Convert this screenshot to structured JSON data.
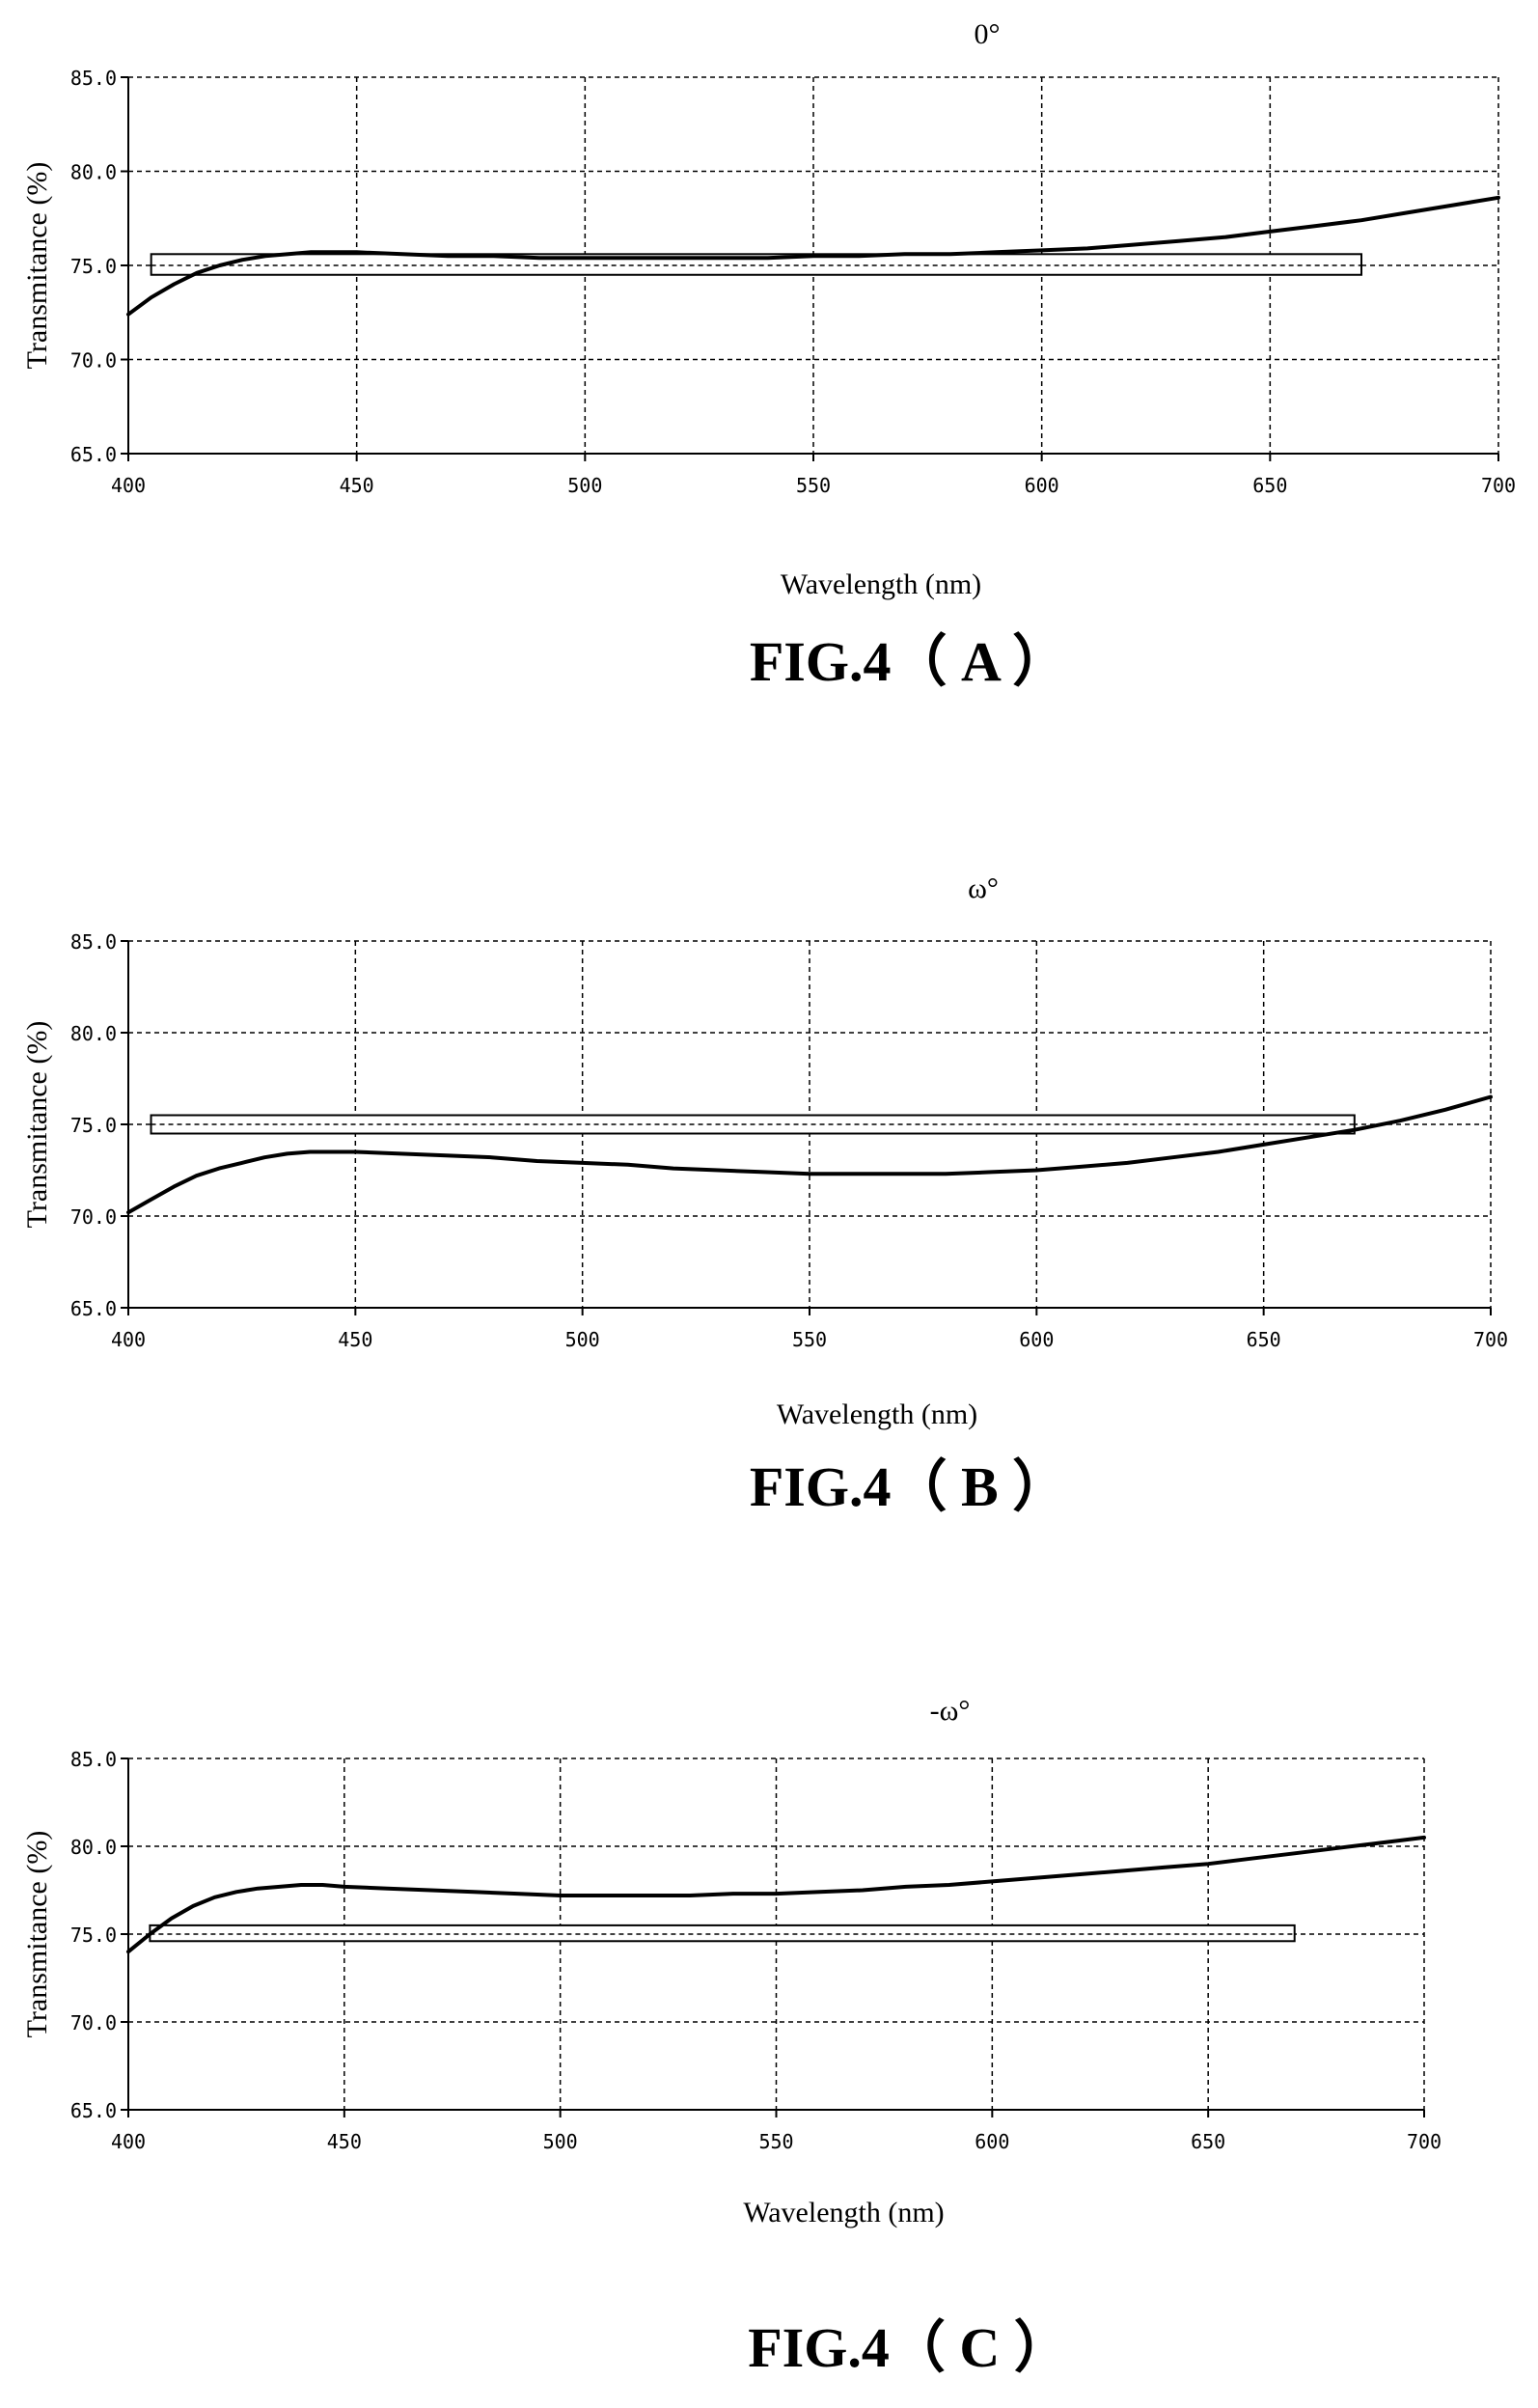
{
  "chart_data": [
    {
      "type": "line",
      "title": "0°",
      "xlabel": "Wavelength (nm)",
      "ylabel": "Transmitance (%)",
      "caption": "FIG.4（ A ）",
      "xlim": [
        400,
        700
      ],
      "ylim": [
        65,
        85
      ],
      "xticks": [
        400,
        450,
        500,
        550,
        600,
        650,
        700
      ],
      "xtick_labels": [
        "400",
        "450",
        "500",
        "550",
        "600",
        "650",
        "700"
      ],
      "yticks": [
        65,
        70,
        75,
        80,
        85
      ],
      "ytick_labels": [
        "65.0",
        "70.0",
        "75.0",
        "80.0",
        "85.0"
      ],
      "grid": true,
      "reference_band": {
        "x": [
          405,
          670
        ],
        "y": [
          74.5,
          75.6
        ],
        "midline": 75.0
      },
      "series": [
        {
          "x": [
            400,
            405,
            410,
            415,
            420,
            425,
            430,
            435,
            440,
            445,
            450,
            460,
            470,
            480,
            490,
            500,
            510,
            520,
            530,
            540,
            550,
            560,
            570,
            580,
            590,
            600,
            610,
            620,
            630,
            640,
            650,
            660,
            670,
            680,
            690,
            700
          ],
          "values": [
            72.4,
            73.3,
            74.0,
            74.6,
            75.0,
            75.3,
            75.5,
            75.6,
            75.7,
            75.7,
            75.7,
            75.6,
            75.5,
            75.5,
            75.4,
            75.4,
            75.4,
            75.4,
            75.4,
            75.4,
            75.5,
            75.5,
            75.6,
            75.6,
            75.7,
            75.8,
            75.9,
            76.1,
            76.3,
            76.5,
            76.8,
            77.1,
            77.4,
            77.8,
            78.2,
            78.6
          ]
        }
      ]
    },
    {
      "type": "line",
      "title": "ω°",
      "xlabel": "Wavelength (nm)",
      "ylabel": "Transmitance (%)",
      "caption": "FIG.4（ B ）",
      "xlim": [
        400,
        700
      ],
      "ylim": [
        65,
        85
      ],
      "xticks": [
        400,
        450,
        500,
        550,
        600,
        650,
        700
      ],
      "xtick_labels": [
        "400",
        "450",
        "500",
        "550",
        "600",
        "650",
        "700"
      ],
      "yticks": [
        65,
        70,
        75,
        80,
        85
      ],
      "ytick_labels": [
        "65.0",
        "70.0",
        "75.0",
        "80.0",
        "85.0"
      ],
      "grid": true,
      "reference_band": {
        "x": [
          405,
          670
        ],
        "y": [
          74.5,
          75.5
        ],
        "midline": 75.0
      },
      "series": [
        {
          "x": [
            400,
            405,
            410,
            415,
            420,
            425,
            430,
            435,
            440,
            445,
            450,
            460,
            470,
            480,
            490,
            500,
            510,
            520,
            530,
            540,
            550,
            560,
            570,
            580,
            590,
            600,
            610,
            620,
            630,
            640,
            650,
            660,
            670,
            680,
            690,
            700
          ],
          "values": [
            70.2,
            70.9,
            71.6,
            72.2,
            72.6,
            72.9,
            73.2,
            73.4,
            73.5,
            73.5,
            73.5,
            73.4,
            73.3,
            73.2,
            73.0,
            72.9,
            72.8,
            72.6,
            72.5,
            72.4,
            72.3,
            72.3,
            72.3,
            72.3,
            72.4,
            72.5,
            72.7,
            72.9,
            73.2,
            73.5,
            73.9,
            74.3,
            74.7,
            75.2,
            75.8,
            76.5
          ]
        }
      ]
    },
    {
      "type": "line",
      "title": "-ω°",
      "xlabel": "Wavelength (nm)",
      "ylabel": "Transmitance (%)",
      "caption": "FIG.4（ C ）",
      "xlim": [
        400,
        700
      ],
      "ylim": [
        65,
        85
      ],
      "xticks": [
        400,
        450,
        500,
        550,
        600,
        650,
        700
      ],
      "xtick_labels": [
        "400",
        "450",
        "500",
        "550",
        "600",
        "650",
        "700"
      ],
      "yticks": [
        65,
        70,
        75,
        80,
        85
      ],
      "ytick_labels": [
        "65.0",
        "70.0",
        "75.0",
        "80.0",
        "85.0"
      ],
      "grid": true,
      "reference_band": {
        "x": [
          405,
          670
        ],
        "y": [
          74.6,
          75.5
        ],
        "midline": 75.0
      },
      "series": [
        {
          "x": [
            400,
            405,
            410,
            415,
            420,
            425,
            430,
            435,
            440,
            445,
            450,
            460,
            470,
            480,
            490,
            500,
            510,
            520,
            530,
            540,
            550,
            560,
            570,
            580,
            590,
            600,
            610,
            620,
            630,
            640,
            650,
            660,
            670,
            680,
            690,
            700
          ],
          "values": [
            74.0,
            75.0,
            75.9,
            76.6,
            77.1,
            77.4,
            77.6,
            77.7,
            77.8,
            77.8,
            77.7,
            77.6,
            77.5,
            77.4,
            77.3,
            77.2,
            77.2,
            77.2,
            77.2,
            77.3,
            77.3,
            77.4,
            77.5,
            77.7,
            77.8,
            78.0,
            78.2,
            78.4,
            78.6,
            78.8,
            79.0,
            79.3,
            79.6,
            79.9,
            80.2,
            80.5
          ]
        }
      ]
    }
  ]
}
